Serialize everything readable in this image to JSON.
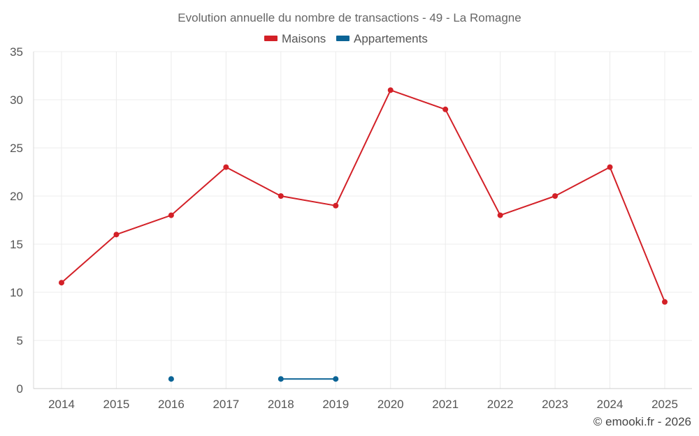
{
  "chart_data": {
    "type": "line",
    "title": "Evolution annuelle du nombre de transactions - 49 - La Romagne",
    "categories": [
      "2014",
      "2015",
      "2016",
      "2017",
      "2018",
      "2019",
      "2020",
      "2021",
      "2022",
      "2023",
      "2024",
      "2025"
    ],
    "series": [
      {
        "name": "Maisons",
        "color": "#d32027",
        "values": [
          11,
          16,
          18,
          23,
          20,
          19,
          31,
          29,
          18,
          20,
          23,
          9
        ]
      },
      {
        "name": "Appartements",
        "color": "#0b6496",
        "values": [
          null,
          null,
          1,
          null,
          1,
          1,
          null,
          null,
          null,
          null,
          null,
          null
        ]
      }
    ],
    "yticks": [
      0,
      5,
      10,
      15,
      20,
      25,
      30,
      35
    ],
    "ylim": [
      0,
      35
    ],
    "grid": true,
    "legend": "top-center",
    "credit": "© emooki.fr - 2026"
  }
}
